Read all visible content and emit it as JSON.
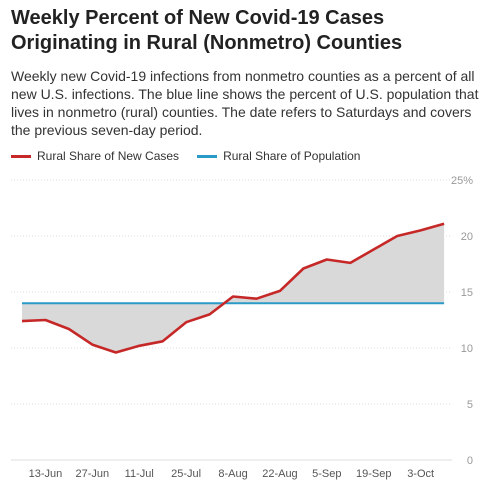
{
  "title": "Weekly Percent of New Covid-19 Cases Originating in Rural (Nonmetro) Counties",
  "subtitle": "Weekly new Covid-19 infections from nonmetro counties as a percent of all new U.S. infections. The blue line shows the percent of U.S. population that lives in nonmetro (rural) counties. The date refers to Saturdays and covers the previous seven-day period.",
  "legend": {
    "rural_cases": "Rural Share of New Cases",
    "rural_population": "Rural Share of Population"
  },
  "colors": {
    "cases": "#c62828",
    "population": "#2a9bc7",
    "fill": "#d9d9d9",
    "grid": "#dddddd",
    "axis_text": "#999999"
  },
  "chart_data": {
    "type": "line",
    "title": "Weekly Percent of New Covid-19 Cases Originating in Rural (Nonmetro) Counties",
    "xlabel": "",
    "ylabel": "",
    "ylim": [
      0,
      25
    ],
    "grid": true,
    "legend_position": "top-left",
    "x_tick_labels": [
      "13-Jun",
      "27-Jun",
      "11-Jul",
      "25-Jul",
      "8-Aug",
      "22-Aug",
      "5-Sep",
      "19-Sep",
      "3-Oct"
    ],
    "y_tick_labels": [
      "0",
      "5",
      "10",
      "15",
      "20",
      "25%"
    ],
    "y_ticks": [
      0,
      5,
      10,
      15,
      20,
      25
    ],
    "x": [
      "6-Jun",
      "13-Jun",
      "20-Jun",
      "27-Jun",
      "4-Jul",
      "11-Jul",
      "18-Jul",
      "25-Jul",
      "1-Aug",
      "8-Aug",
      "15-Aug",
      "22-Aug",
      "29-Aug",
      "5-Sep",
      "12-Sep",
      "19-Sep",
      "26-Sep",
      "3-Oct",
      "10-Oct"
    ],
    "series": [
      {
        "name": "Rural Share of New Cases",
        "values": [
          12.4,
          12.5,
          11.7,
          10.3,
          9.6,
          10.2,
          10.6,
          12.3,
          13.0,
          14.6,
          14.4,
          15.1,
          17.1,
          17.9,
          17.6,
          18.8,
          20.0,
          20.5,
          21.1
        ]
      },
      {
        "name": "Rural Share of Population",
        "values": [
          14.0,
          14.0,
          14.0,
          14.0,
          14.0,
          14.0,
          14.0,
          14.0,
          14.0,
          14.0,
          14.0,
          14.0,
          14.0,
          14.0,
          14.0,
          14.0,
          14.0,
          14.0,
          14.0
        ]
      }
    ]
  }
}
